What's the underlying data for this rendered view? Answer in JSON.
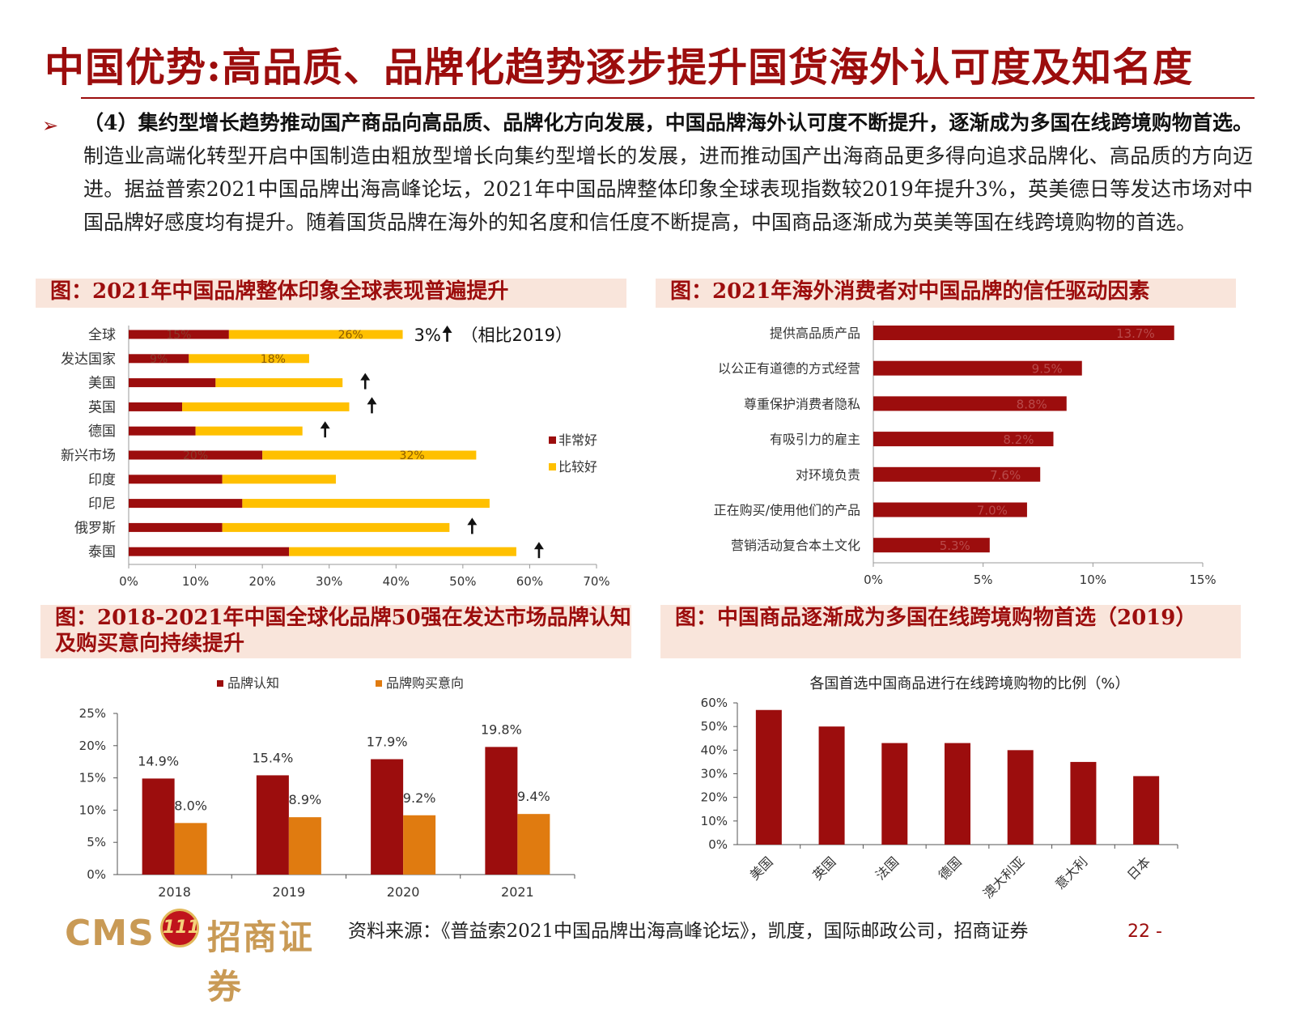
{
  "page": {
    "title": "中国优势:高品质、品牌化趋势逐步提升国货海外认可度及知名度",
    "bullet_bold": "（4）集约型增长趋势推动国产商品向高品质、品牌化方向发展，中国品牌海外认可度不断提升，逐渐成为多国在线跨境购物首选。",
    "bullet_text": "制造业高端化转型开启中国制造由粗放型增长向集约型增长的发展，进而推动国产出海商品更多得向追求品牌化、高品质的方向迈进。据益普索2021中国品牌出海高峰论坛，2021年中国品牌整体印象全球表现指数较2019年提升3%，英美德日等发达市场对中国品牌好感度均有提升。随着国货品牌在海外的知名度和信任度不断提高，中国商品逐渐成为英美等国在线跨境购物的首选。",
    "source": "资料来源：《普益索2021中国品牌出海高峰论坛》，凯度，国际邮政公司，招商证券",
    "page_number": "22 -",
    "logo": {
      "en": "CMS",
      "mark": "111",
      "cn": "招商证券"
    },
    "colors": {
      "dark_red": "#9c0d0d",
      "yellow": "#ffc000",
      "orange": "#e07b10",
      "panel_bg": "#f9e5db"
    }
  },
  "chart_data": [
    {
      "id": "chart1",
      "type": "bar",
      "orientation": "horizontal",
      "stacked": true,
      "heading": "图：2021年中国品牌整体印象全球表现普遍提升",
      "categories": [
        "全球",
        "发达国家",
        "美国",
        "英国",
        "德国",
        "新兴市场",
        "印度",
        "印尼",
        "俄罗斯",
        "泰国"
      ],
      "series": [
        {
          "name": "非常好",
          "color": "#9c0d0d",
          "values": [
            15,
            9,
            13,
            8,
            10,
            20,
            14,
            17,
            14,
            24
          ],
          "labels": [
            "15%",
            "9%",
            "",
            "",
            "",
            "20%",
            "",
            "",
            "",
            ""
          ]
        },
        {
          "name": "比较好",
          "color": "#ffc000",
          "values": [
            26,
            18,
            19,
            25,
            16,
            32,
            17,
            37,
            34,
            34
          ],
          "labels": [
            "26%",
            "18%",
            "",
            "",
            "",
            "32%",
            "",
            "",
            "",
            ""
          ]
        }
      ],
      "up_arrows": [
        0,
        2,
        3,
        4,
        8,
        9
      ],
      "annotation": "3%",
      "annotation_suffix": "（相比2019）",
      "xlim": [
        0,
        70
      ],
      "xticks": [
        "0%",
        "10%",
        "20%",
        "30%",
        "40%",
        "50%",
        "60%",
        "70%"
      ],
      "legend_position": "right"
    },
    {
      "id": "chart2",
      "type": "bar",
      "orientation": "horizontal",
      "heading": "图：2021年海外消费者对中国品牌的信任驱动因素",
      "categories": [
        "提供高品质产品",
        "以公正有道德的方式经营",
        "尊重保护消费者隐私",
        "有吸引力的雇主",
        "对环境负责",
        "正在购买/使用他们的产品",
        "营销活动复合本土文化"
      ],
      "values": [
        13.7,
        9.5,
        8.8,
        8.2,
        7.6,
        7.0,
        5.3
      ],
      "labels": [
        "13.7%",
        "9.5%",
        "8.8%",
        "8.2%",
        "7.6%",
        "7.0%",
        "5.3%"
      ],
      "color": "#9c0d0d",
      "xlim": [
        0,
        15
      ],
      "xticks": [
        "0%",
        "5%",
        "10%",
        "15%"
      ]
    },
    {
      "id": "chart3",
      "type": "bar",
      "heading": "图：2018-2021年中国全球化品牌50强在发达市场品牌认知及购买意向持续提升",
      "categories": [
        "2018",
        "2019",
        "2020",
        "2021"
      ],
      "series": [
        {
          "name": "品牌认知",
          "color": "#9c0d0d",
          "values": [
            14.9,
            15.4,
            17.9,
            19.8
          ],
          "labels": [
            "14.9%",
            "15.4%",
            "17.9%",
            "19.8%"
          ]
        },
        {
          "name": "品牌购买意向",
          "color": "#e07b10",
          "values": [
            8.0,
            8.9,
            9.2,
            9.4
          ],
          "labels": [
            "8.0%",
            "8.9%",
            "9.2%",
            "9.4%"
          ]
        }
      ],
      "ylim": [
        0,
        25
      ],
      "yticks": [
        "0%",
        "5%",
        "10%",
        "15%",
        "20%",
        "25%"
      ],
      "legend_position": "top"
    },
    {
      "id": "chart4",
      "type": "bar",
      "heading": "图：中国商品逐渐成为多国在线跨境购物首选（2019）",
      "title": "各国首选中国商品进行在线跨境购物的比例（%）",
      "categories": [
        "美国",
        "英国",
        "法国",
        "德国",
        "澳大利亚",
        "意大利",
        "日本"
      ],
      "values": [
        57,
        50,
        43,
        43,
        40,
        35,
        29
      ],
      "color": "#9c0d0d",
      "ylim": [
        0,
        60
      ],
      "yticks": [
        "0%",
        "10%",
        "20%",
        "30%",
        "40%",
        "50%",
        "60%"
      ]
    }
  ]
}
